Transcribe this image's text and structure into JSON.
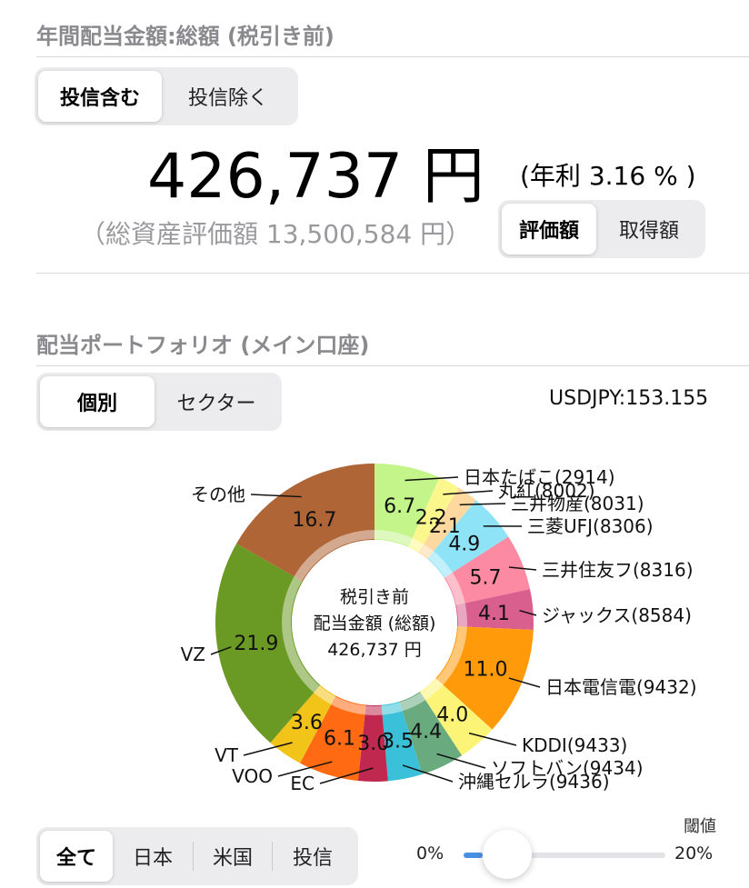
{
  "dividend_section": {
    "title": "年間配当金額:総額 (税引き前)",
    "fund_toggle": {
      "options": [
        "投信含む",
        "投信除く"
      ],
      "selected": 0
    },
    "amount": "426,737 円",
    "yield": "(年利 3.16 % )",
    "total_assets": "（総資産評価額 13,500,584 円）",
    "basis_toggle": {
      "options": [
        "評価額",
        "取得額"
      ],
      "selected": 0
    }
  },
  "portfolio_section": {
    "title": "配当ポートフォリオ (メイン口座)",
    "view_toggle": {
      "options": [
        "個別",
        "セクター"
      ],
      "selected": 0
    },
    "usdjpy": "USDJPY:153.155"
  },
  "chart_data": {
    "type": "pie",
    "center_text": [
      "税引き前",
      "配当金額 (総額)",
      "426,737 円"
    ],
    "slices": [
      {
        "label": "日本たばこ(2914)",
        "value": 6.7,
        "color": "#c3f58a"
      },
      {
        "label": "丸紅(8002)",
        "value": 2.2,
        "color": "#fbf78c"
      },
      {
        "label": "三井物産(8031)",
        "value": 2.1,
        "color": "#fdd9a0"
      },
      {
        "label": "三菱UFJ(8306)",
        "value": 4.9,
        "color": "#8fe3f6"
      },
      {
        "label": "三井住友フ(8316)",
        "value": 5.7,
        "color": "#fd8aa3"
      },
      {
        "label": "ジャックス(8584)",
        "value": 4.1,
        "color": "#d95f8e"
      },
      {
        "label": "日本電信電(9432)",
        "value": 11.0,
        "color": "#ff9a0a"
      },
      {
        "label": "KDDI(9433)",
        "value": 4.0,
        "color": "#fcf477"
      },
      {
        "label": "ソフトバン(9434)",
        "value": 4.4,
        "color": "#6aaa7f"
      },
      {
        "label": "沖縄セルラ(9436)",
        "value": 3.5,
        "color": "#3ac1d9"
      },
      {
        "label": "EC",
        "value": 3.0,
        "color": "#c0284f"
      },
      {
        "label": "VOO",
        "value": 6.1,
        "color": "#ff6a12"
      },
      {
        "label": "VT",
        "value": 3.6,
        "color": "#f2c318"
      },
      {
        "label": "VZ",
        "value": 21.9,
        "color": "#6b9a24"
      },
      {
        "label": "その他",
        "value": 16.7,
        "color": "#b06536"
      }
    ]
  },
  "filter_section": {
    "region_tabs": {
      "options": [
        "全て",
        "日本",
        "米国",
        "投信"
      ],
      "selected": 0
    },
    "threshold": {
      "label": "閾値",
      "min_label": "0%",
      "max_label": "20%",
      "value_fraction": 0.03
    }
  }
}
